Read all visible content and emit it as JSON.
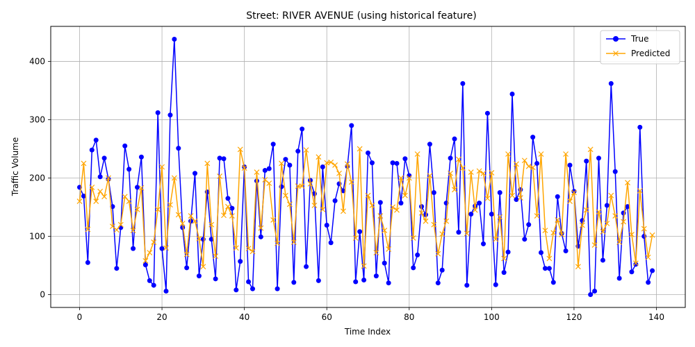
{
  "chart_data": {
    "type": "line",
    "title": "Street: RIVER AVENUE (using historical feature)",
    "xlabel": "Time Index",
    "ylabel": "Traffic Volume",
    "xlim": [
      -7,
      147
    ],
    "ylim": [
      -22,
      460
    ],
    "xticks": [
      0,
      20,
      40,
      60,
      80,
      100,
      120,
      140
    ],
    "yticks": [
      0,
      100,
      200,
      300,
      400
    ],
    "grid": true,
    "legend_position": "top-right",
    "series": [
      {
        "name": "True",
        "color": "#0000ff",
        "marker": "circle",
        "values": [
          184,
          169,
          55,
          248,
          265,
          202,
          234,
          198,
          151,
          45,
          115,
          255,
          215,
          79,
          184,
          236,
          51,
          24,
          16,
          312,
          79,
          6,
          308,
          438,
          251,
          115,
          46,
          126,
          208,
          32,
          95,
          176,
          95,
          27,
          234,
          233,
          165,
          148,
          8,
          57,
          219,
          22,
          10,
          195,
          99,
          213,
          216,
          258,
          10,
          185,
          232,
          222,
          21,
          246,
          284,
          48,
          196,
          173,
          24,
          219,
          119,
          89,
          161,
          190,
          178,
          220,
          290,
          22,
          108,
          25,
          243,
          226,
          32,
          158,
          54,
          20,
          226,
          225,
          157,
          233,
          204,
          46,
          68,
          151,
          137,
          258,
          175,
          20,
          42,
          157,
          234,
          267,
          107,
          362,
          16,
          138,
          152,
          157,
          87,
          311,
          138,
          17,
          175,
          38,
          73,
          344,
          163,
          180,
          95,
          120,
          270,
          225,
          72,
          45,
          45,
          21,
          168,
          105,
          75,
          222,
          177,
          83,
          127,
          229,
          0,
          6,
          234,
          59,
          153,
          362,
          211,
          28,
          140,
          151,
          39,
          52,
          287,
          100,
          21,
          41
        ]
      },
      {
        "name": "Predicted",
        "color": "#ffa500",
        "marker": "x",
        "values": [
          160,
          225,
          112,
          184,
          160,
          177,
          168,
          200,
          117,
          111,
          120,
          168,
          160,
          110,
          146,
          183,
          58,
          72,
          90,
          146,
          219,
          80,
          154,
          200,
          137,
          122,
          69,
          135,
          126,
          96,
          48,
          225,
          120,
          66,
          203,
          136,
          151,
          135,
          80,
          249,
          217,
          79,
          74,
          210,
          114,
          197,
          191,
          128,
          88,
          225,
          170,
          155,
          90,
          186,
          186,
          248,
          190,
          153,
          236,
          146,
          226,
          227,
          222,
          208,
          143,
          224,
          193,
          97,
          250,
          49,
          170,
          153,
          72,
          135,
          110,
          78,
          150,
          145,
          200,
          170,
          200,
          97,
          241,
          140,
          126,
          204,
          120,
          70,
          104,
          126,
          208,
          180,
          232,
          217,
          105,
          210,
          145,
          212,
          208,
          165,
          209,
          95,
          133,
          62,
          241,
          170,
          224,
          166,
          230,
          220,
          218,
          135,
          241,
          110,
          62,
          106,
          128,
          103,
          241,
          160,
          175,
          48,
          119,
          145,
          249,
          85,
          142,
          108,
          122,
          170,
          135,
          90,
          125,
          192,
          103,
          54,
          178,
          113,
          64,
          102
        ]
      }
    ]
  }
}
